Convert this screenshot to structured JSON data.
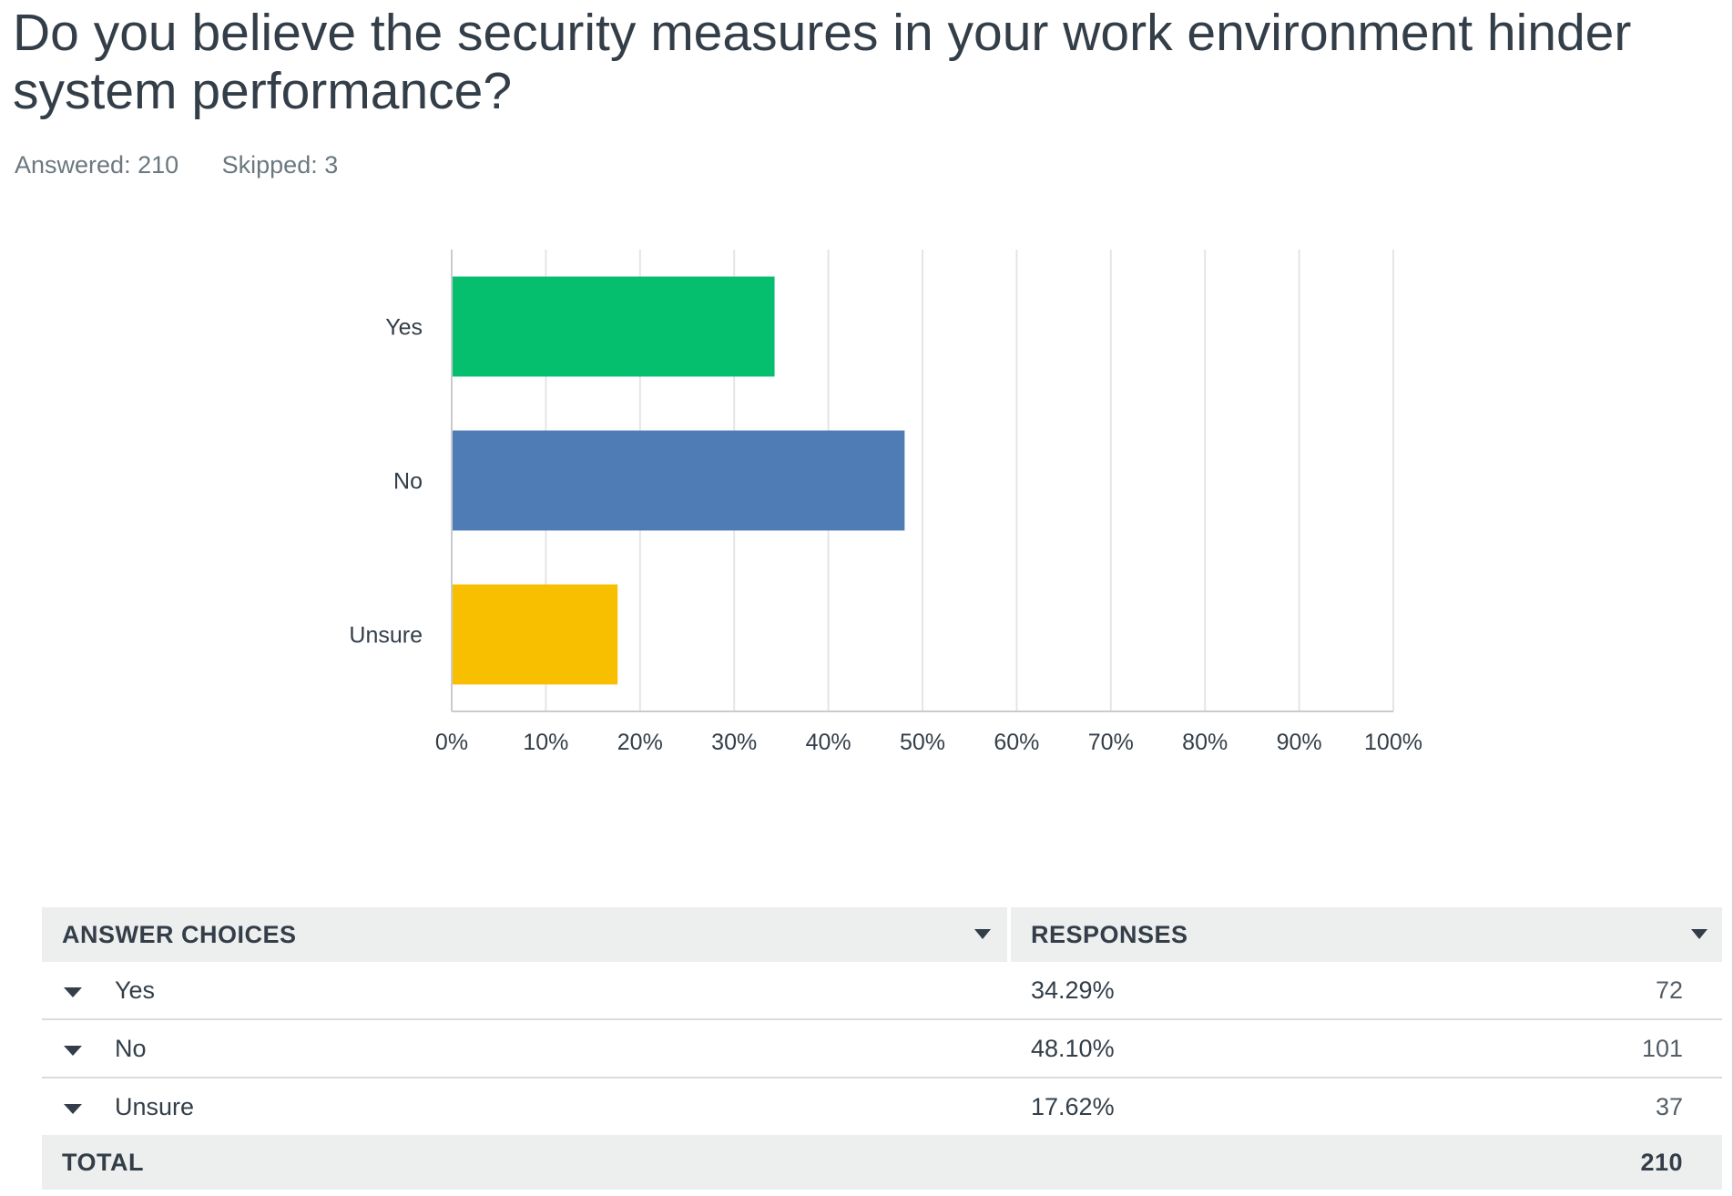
{
  "question": {
    "title": "Do you believe the security measures in your work environment hinder system performance?",
    "answered_label": "Answered: 210",
    "skipped_label": "Skipped: 3"
  },
  "chart_data": {
    "type": "bar",
    "orientation": "horizontal",
    "categories": [
      "Yes",
      "No",
      "Unsure"
    ],
    "values": [
      34.29,
      48.1,
      17.62
    ],
    "colors": [
      "#05bf6e",
      "#507cb6",
      "#f8be00"
    ],
    "xlim": [
      0,
      100
    ],
    "ticks": [
      "0%",
      "10%",
      "20%",
      "30%",
      "40%",
      "50%",
      "60%",
      "70%",
      "80%",
      "90%",
      "100%"
    ],
    "grid": true,
    "title": "",
    "xlabel": "",
    "ylabel": ""
  },
  "table": {
    "header_choices": "ANSWER CHOICES",
    "header_responses": "RESPONSES",
    "rows": [
      {
        "choice": "Yes",
        "percent": "34.29%",
        "count": "72"
      },
      {
        "choice": "No",
        "percent": "48.10%",
        "count": "101"
      },
      {
        "choice": "Unsure",
        "percent": "17.62%",
        "count": "37"
      }
    ],
    "total_label": "TOTAL",
    "total_value": "210"
  }
}
